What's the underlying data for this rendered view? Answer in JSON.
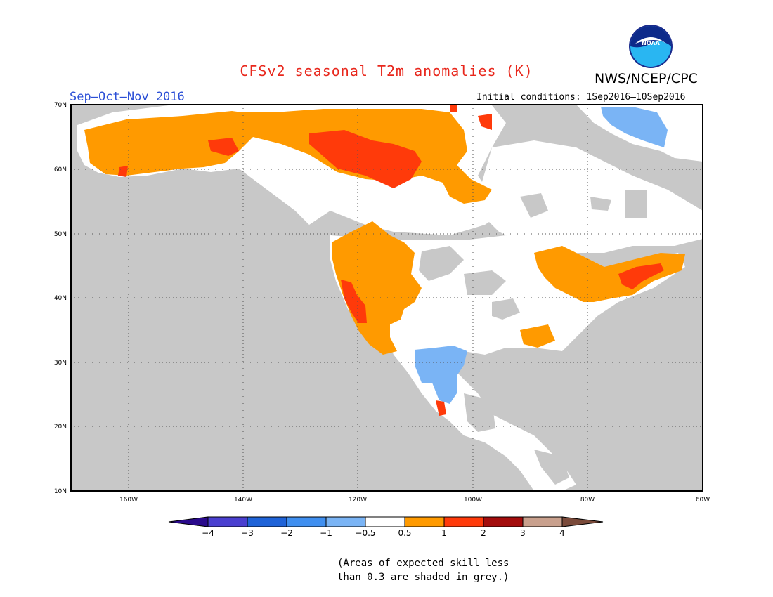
{
  "title": "CFSv2 seasonal T2m anomalies (K)",
  "agency": "NWS/NCEP/CPC",
  "logo_text": "NOAA",
  "season": "Sep–Oct–Nov 2016",
  "initial_conditions": "Initial conditions: 1Sep2016–10Sep2016",
  "note_lines": [
    "(Areas of expected skill less",
    "than 0.3 are shaded in grey.)"
  ],
  "map": {
    "lon_range": [
      -170,
      -60
    ],
    "lat_range": [
      10,
      70
    ],
    "lat_labels": [
      "70N",
      "60N",
      "50N",
      "40N",
      "30N",
      "20N",
      "10N"
    ],
    "lon_labels": [
      "160W",
      "140W",
      "120W",
      "100W",
      "80W",
      "60W"
    ],
    "gridlines": "dotted"
  },
  "colorbar": {
    "ticks": [
      "−4",
      "−3",
      "−2",
      "−1",
      "−0.5",
      "0.5",
      "1",
      "2",
      "3",
      "4"
    ],
    "colors": [
      "#2a0a8c",
      "#4a3fd0",
      "#1f63d8",
      "#3f8ff0",
      "#7ab4f5",
      "#ffffff",
      "#ff9a00",
      "#ff3a0a",
      "#a40d0d",
      "#c9a08d",
      "#7a4a3a"
    ]
  },
  "colors": {
    "grey_no_skill": "#c8c8c8",
    "near_normal": "#ffffff",
    "warm_05_1": "#ff9a00",
    "warm_1_2": "#ff3a0a",
    "cool_05_1": "#7ab4f5"
  }
}
